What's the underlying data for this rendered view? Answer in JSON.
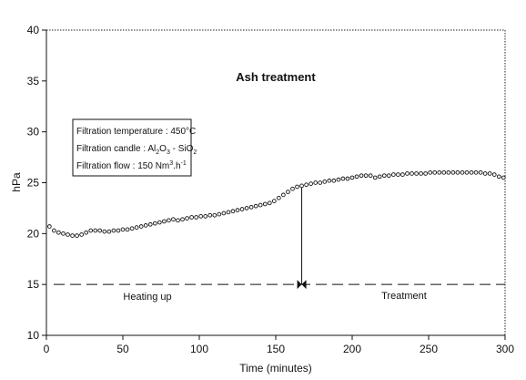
{
  "chart_data": {
    "type": "scatter",
    "title": "Ash treatment",
    "xlabel": "Time (minutes)",
    "ylabel": "hPa",
    "xlim": [
      0,
      300
    ],
    "ylim": [
      10,
      40
    ],
    "xticks": [
      0,
      50,
      100,
      150,
      200,
      250,
      300
    ],
    "yticks": [
      10,
      15,
      20,
      25,
      30,
      35,
      40
    ],
    "grid": false,
    "series": [
      {
        "x": [
          2,
          5,
          8,
          11,
          14,
          17,
          20,
          23,
          26,
          29,
          32,
          35,
          38,
          41,
          44,
          47,
          50,
          53,
          56,
          59,
          62,
          65,
          68,
          71,
          74,
          77,
          80,
          83,
          86,
          89,
          92,
          95,
          98,
          101,
          104,
          107,
          110,
          113,
          116,
          119,
          122,
          125,
          128,
          131,
          134,
          137,
          140,
          143,
          146,
          149,
          152,
          155,
          158,
          161,
          164,
          167,
          170,
          173,
          176,
          179,
          182,
          185,
          188,
          191,
          194,
          197,
          200,
          203,
          206,
          209,
          212,
          215,
          218,
          221,
          224,
          227,
          230,
          233,
          236,
          239,
          242,
          245,
          248,
          251,
          254,
          257,
          260,
          263,
          266,
          269,
          272,
          275,
          278,
          281,
          284,
          287,
          290,
          293,
          296,
          299
        ],
        "y": [
          20.7,
          20.3,
          20.1,
          20.0,
          19.9,
          19.8,
          19.8,
          19.9,
          20.1,
          20.3,
          20.3,
          20.3,
          20.2,
          20.2,
          20.3,
          20.3,
          20.4,
          20.4,
          20.5,
          20.6,
          20.7,
          20.8,
          20.9,
          21.0,
          21.1,
          21.2,
          21.3,
          21.4,
          21.3,
          21.4,
          21.5,
          21.6,
          21.6,
          21.7,
          21.7,
          21.8,
          21.8,
          21.9,
          22.0,
          22.1,
          22.2,
          22.3,
          22.4,
          22.5,
          22.6,
          22.7,
          22.8,
          22.9,
          23.0,
          23.2,
          23.5,
          23.8,
          24.1,
          24.4,
          24.6,
          24.7,
          24.8,
          24.9,
          25.0,
          25.0,
          25.1,
          25.2,
          25.2,
          25.3,
          25.4,
          25.4,
          25.5,
          25.6,
          25.7,
          25.7,
          25.7,
          25.5,
          25.6,
          25.7,
          25.7,
          25.8,
          25.8,
          25.8,
          25.9,
          25.9,
          25.9,
          25.9,
          25.9,
          26.0,
          26.0,
          26.0,
          26.0,
          26.0,
          26.0,
          26.0,
          26.0,
          26.0,
          26.0,
          26.0,
          26.0,
          25.9,
          25.9,
          25.8,
          25.6,
          25.5
        ]
      }
    ],
    "reference_line": {
      "y": 15
    },
    "phase_marker": {
      "x": 167,
      "y_from": 15,
      "y_to": 24.6
    },
    "annotations": [
      "Heating up",
      "Treatment"
    ],
    "legend_box": {
      "line1": "Filtration temperature : 450°C",
      "line2_prefix": "Filtration candle : Al",
      "line2_sub1": "2",
      "line2_mid1": "O",
      "line2_sub2": "3",
      "line2_mid2": " - SiO",
      "line2_sub3": "2",
      "line3_prefix": "Filtration flow : 150 Nm",
      "line3_sup1": "3",
      "line3_mid": ".h",
      "line3_sup2": "-1"
    }
  }
}
